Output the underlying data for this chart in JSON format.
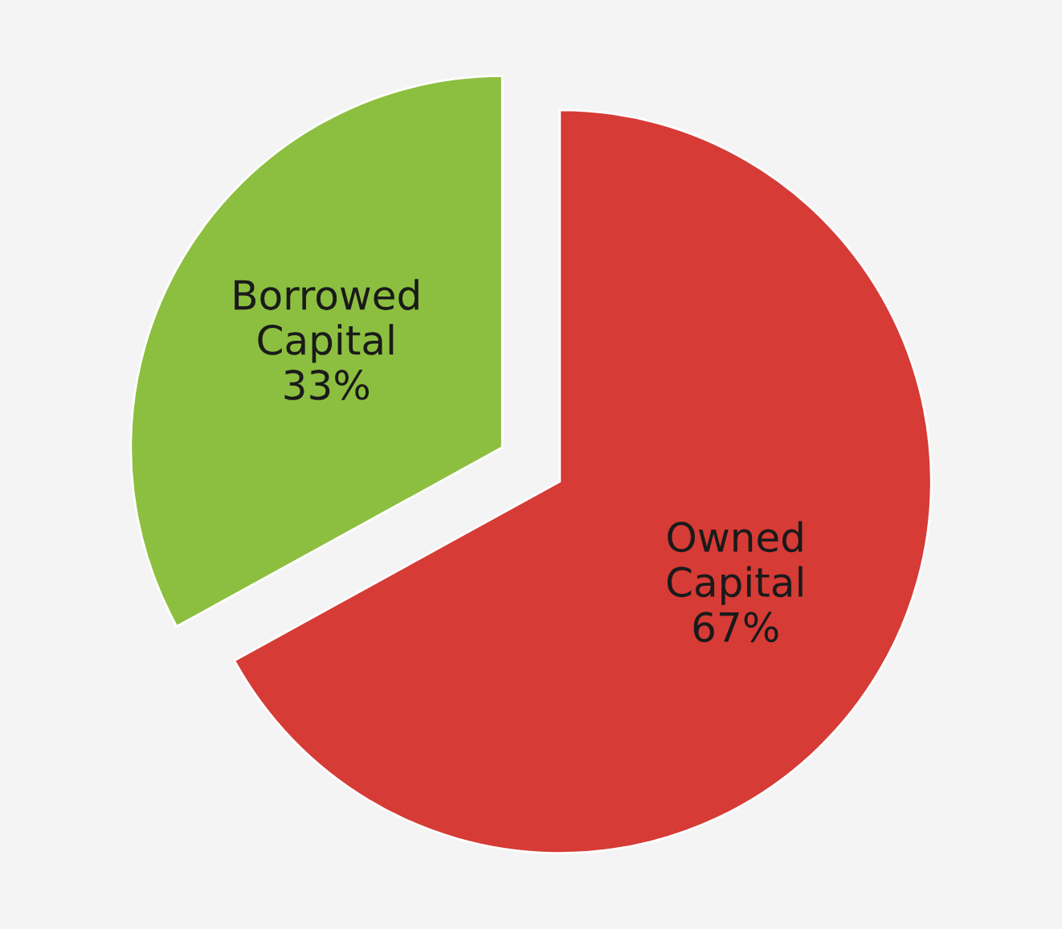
{
  "chart_data": {
    "type": "pie",
    "categories": [
      "Borrowed Capital",
      "Owned Capital"
    ],
    "values": [
      33,
      67
    ],
    "colors": [
      "#8cbf3f",
      "#d63b36"
    ],
    "value_labels": [
      "33%",
      "67%"
    ],
    "legend": false
  }
}
